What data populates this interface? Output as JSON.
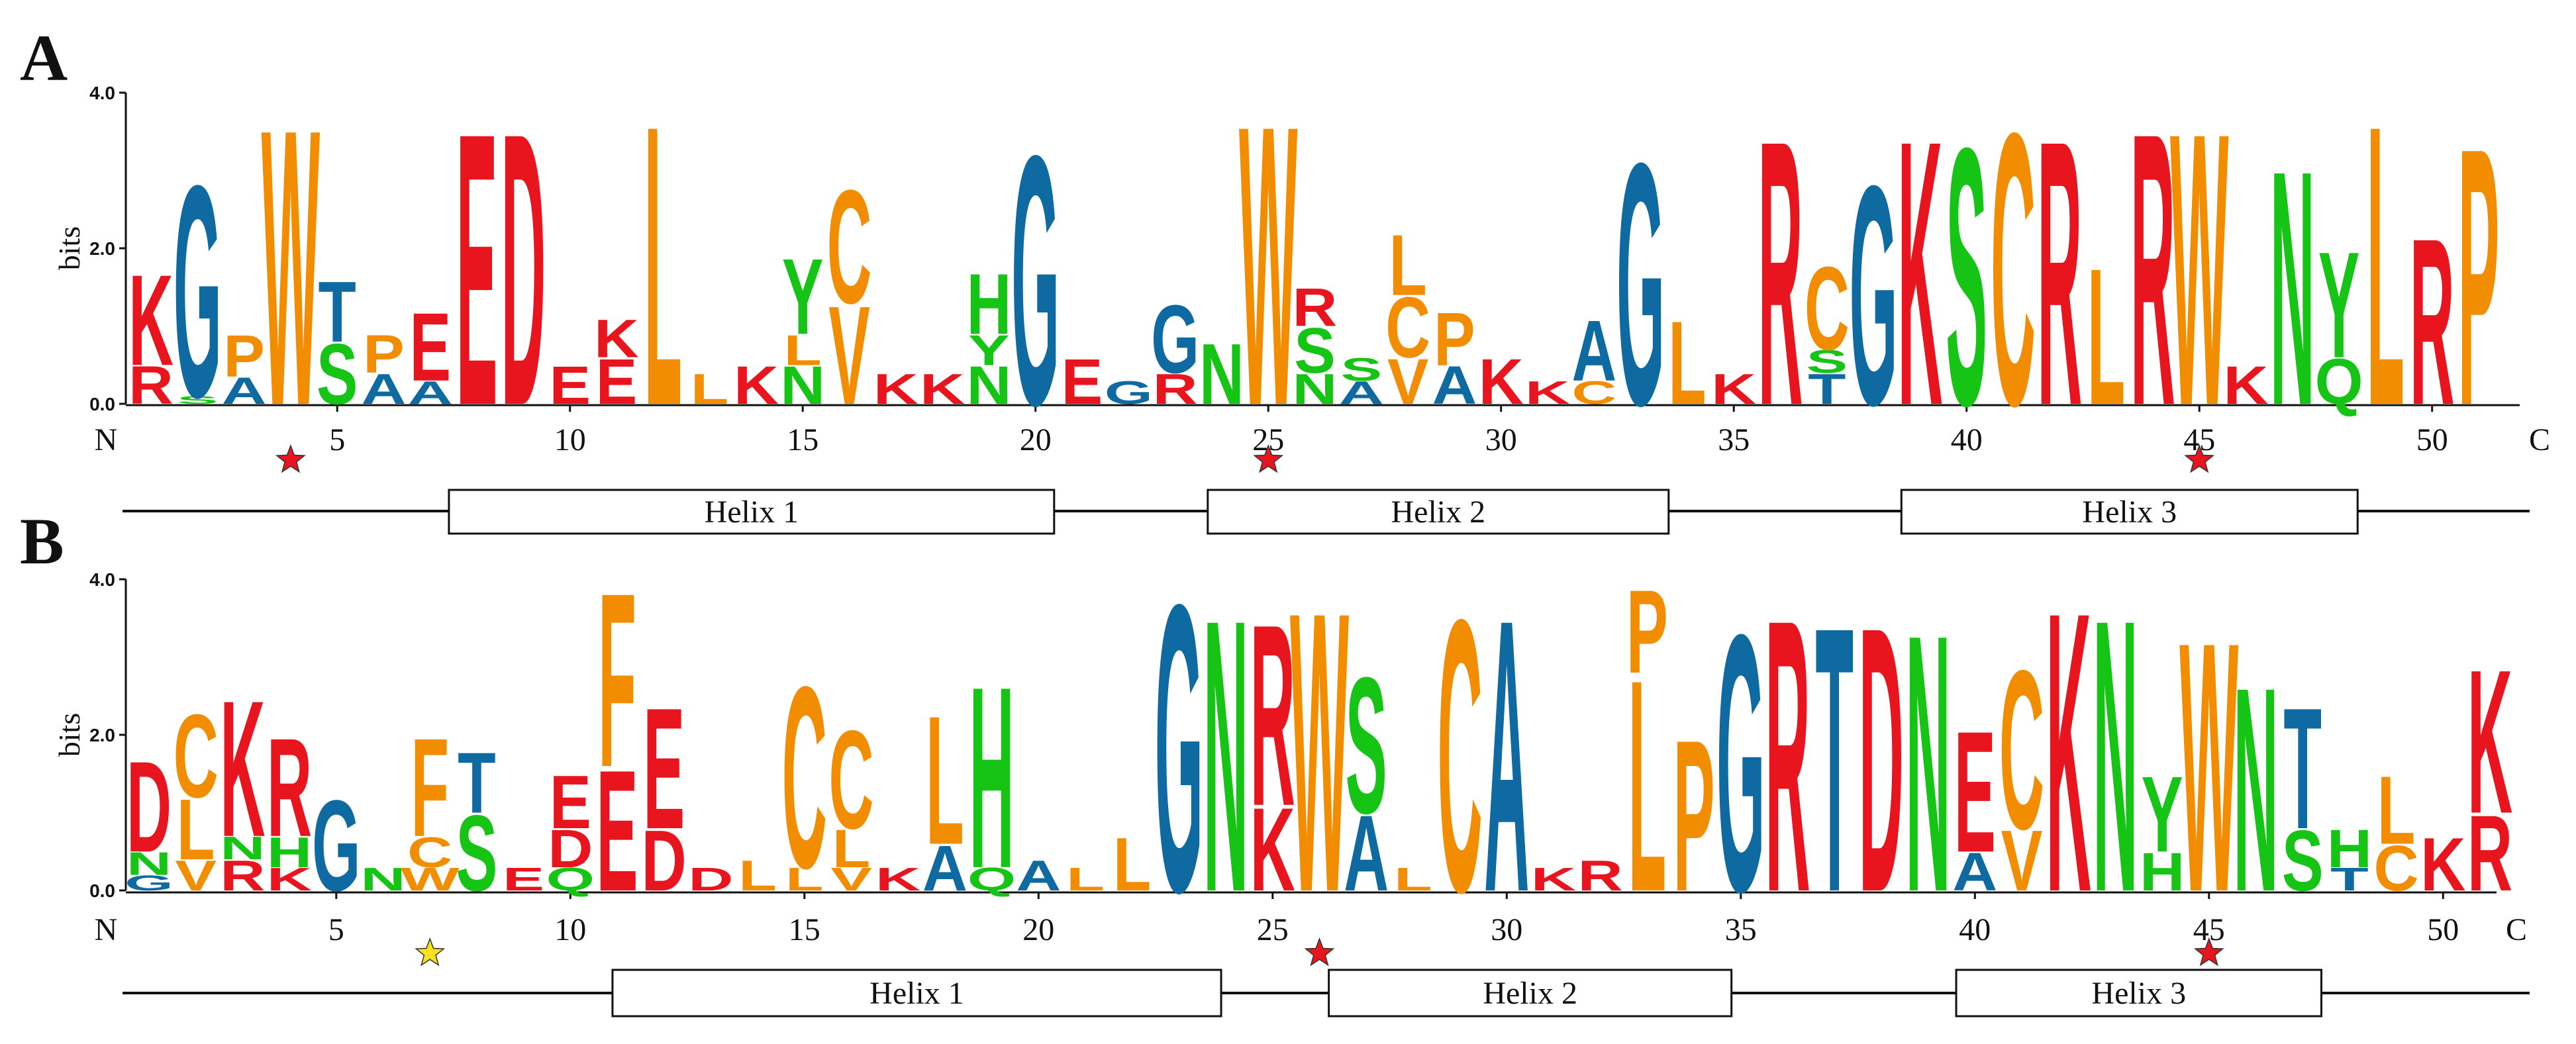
{
  "colors": {
    "G": "#0f6aa1",
    "A": "#0f6aa1",
    "T": "#0f6aa1",
    "C": "#f28c00",
    "hydrophobic": "#f28c00",
    "basic": "#e8151f",
    "acidic": "#e8151f",
    "polar": "#16c416"
  },
  "chart_data": [
    {
      "type": "sequence-logo",
      "panel": "A",
      "ylabel": "bits",
      "ylim": [
        0,
        4.0
      ],
      "yticks": [
        "0.0",
        "2.0",
        "4.0"
      ],
      "n_label": "N",
      "c_label": "C",
      "xticks": [
        "5",
        "10",
        "15",
        "20",
        "25",
        "30",
        "35",
        "40",
        "45",
        "50"
      ],
      "xtick_positions": [
        5,
        10,
        15,
        20,
        25,
        30,
        35,
        40,
        45,
        50
      ],
      "positions": 51,
      "stacks": [
        [
          [
            "R",
            0.5
          ],
          [
            "K",
            1.2
          ]
        ],
        [
          [
            "S",
            0.1
          ],
          [
            "G",
            2.8
          ]
        ],
        [
          [
            "A",
            0.35
          ],
          [
            "P",
            0.55
          ]
        ],
        [
          [
            "W",
            3.65
          ]
        ],
        [
          [
            "S",
            0.8
          ],
          [
            "T",
            0.8
          ]
        ],
        [
          [
            "A",
            0.4
          ],
          [
            "P",
            0.5
          ]
        ],
        [
          [
            "A",
            0.3
          ],
          [
            "E",
            0.9
          ]
        ],
        [
          [
            "E",
            3.6
          ]
        ],
        [
          [
            "D",
            3.6
          ]
        ],
        [
          [
            "E",
            0.5
          ]
        ],
        [
          [
            "E",
            0.6
          ],
          [
            "K",
            0.5
          ]
        ],
        [
          [
            "L",
            3.7
          ]
        ],
        [
          [
            "L",
            0.4
          ]
        ],
        [
          [
            "K",
            0.5
          ]
        ],
        [
          [
            "N",
            0.5
          ],
          [
            "L",
            0.4
          ],
          [
            "Y",
            1.0
          ]
        ],
        [
          [
            "V",
            1.3
          ],
          [
            "C",
            1.5
          ]
        ],
        [
          [
            "K",
            0.4
          ]
        ],
        [
          [
            "K",
            0.4
          ]
        ],
        [
          [
            "N",
            0.5
          ],
          [
            "Y",
            0.4
          ],
          [
            "H",
            0.8
          ]
        ],
        [
          [
            "G",
            3.3
          ]
        ],
        [
          [
            "E",
            0.6
          ]
        ],
        [
          [
            "G",
            0.3
          ]
        ],
        [
          [
            "R",
            0.4
          ],
          [
            "G",
            0.9
          ]
        ],
        [
          [
            "N",
            0.8
          ]
        ],
        [
          [
            "W",
            3.7
          ]
        ],
        [
          [
            "N",
            0.4
          ],
          [
            "S",
            0.6
          ],
          [
            "R",
            0.5
          ]
        ],
        [
          [
            "A",
            0.3
          ],
          [
            "S",
            0.3
          ]
        ],
        [
          [
            "V",
            0.6
          ],
          [
            "C",
            0.8
          ],
          [
            "L",
            0.8
          ]
        ],
        [
          [
            "A",
            0.5
          ],
          [
            "P",
            0.7
          ]
        ],
        [
          [
            "K",
            0.6
          ]
        ],
        [
          [
            "K",
            0.3
          ]
        ],
        [
          [
            "C",
            0.3
          ],
          [
            "A",
            0.8
          ]
        ],
        [
          [
            "G",
            3.2
          ]
        ],
        [
          [
            "L",
            1.1
          ]
        ],
        [
          [
            "K",
            0.4
          ]
        ],
        [
          [
            "R",
            3.5
          ]
        ],
        [
          [
            "T",
            0.4
          ],
          [
            "S",
            0.3
          ],
          [
            "C",
            1.1
          ]
        ],
        [
          [
            "G",
            2.9
          ]
        ],
        [
          [
            "K",
            3.5
          ]
        ],
        [
          [
            "S",
            3.4
          ]
        ],
        [
          [
            "C",
            3.6
          ]
        ],
        [
          [
            "R",
            3.5
          ]
        ],
        [
          [
            "L",
            1.8
          ]
        ],
        [
          [
            "R",
            3.6
          ]
        ],
        [
          [
            "W",
            3.6
          ]
        ],
        [
          [
            "K",
            0.5
          ]
        ],
        [
          [
            "N",
            3.1
          ]
        ],
        [
          [
            "Q",
            0.6
          ],
          [
            "Y",
            1.4
          ]
        ],
        [
          [
            "L",
            3.7
          ]
        ],
        [
          [
            "R",
            2.2
          ]
        ],
        [
          [
            "P",
            3.4
          ]
        ]
      ],
      "stars": [
        {
          "position": 4,
          "color": "#e8151f"
        },
        {
          "position": 25,
          "color": "#e8151f"
        },
        {
          "position": 45,
          "color": "#e8151f"
        }
      ],
      "helices": [
        {
          "label": "Helix 1",
          "start": 7.4,
          "end": 20.4
        },
        {
          "label": "Helix 2",
          "start": 23.7,
          "end": 33.6
        },
        {
          "label": "Helix 3",
          "start": 38.6,
          "end": 48.4
        }
      ]
    },
    {
      "type": "sequence-logo",
      "panel": "B",
      "ylabel": "bits",
      "ylim": [
        0,
        4.0
      ],
      "yticks": [
        "0.0",
        "2.0",
        "4.0"
      ],
      "n_label": "N",
      "c_label": "C",
      "xticks": [
        "5",
        "10",
        "15",
        "20",
        "25",
        "30",
        "35",
        "40",
        "45",
        "50"
      ],
      "xtick_positions": [
        5,
        10,
        15,
        20,
        25,
        30,
        35,
        40,
        45,
        50
      ],
      "positions": 51,
      "stacks": [
        [
          [
            "G",
            0.2
          ],
          [
            "N",
            0.3
          ],
          [
            "D",
            1.2
          ]
        ],
        [
          [
            "V",
            0.4
          ],
          [
            "L",
            0.8
          ],
          [
            "C",
            1.1
          ]
        ],
        [
          [
            "R",
            0.4
          ],
          [
            "N",
            0.3
          ],
          [
            "K",
            1.8
          ]
        ],
        [
          [
            "K",
            0.3
          ],
          [
            "H",
            0.4
          ],
          [
            "R",
            1.3
          ]
        ],
        [
          [
            "G",
            1.2
          ]
        ],
        [
          [
            "N",
            0.3
          ]
        ],
        [
          [
            "W",
            0.3
          ],
          [
            "C",
            0.4
          ],
          [
            "F",
            1.3
          ]
        ],
        [
          [
            "S",
            1.0
          ],
          [
            "T",
            0.8
          ]
        ],
        [
          [
            "E",
            0.3
          ]
        ],
        [
          [
            "Q",
            0.3
          ],
          [
            "D",
            0.5
          ],
          [
            "E",
            0.7
          ]
        ],
        [
          [
            "E",
            1.6
          ],
          [
            "F",
            2.3
          ]
        ],
        [
          [
            "D",
            0.8
          ],
          [
            "E",
            1.6
          ]
        ],
        [
          [
            "D",
            0.3
          ]
        ],
        [
          [
            "L",
            0.4
          ]
        ],
        [
          [
            "L",
            0.3
          ],
          [
            "C",
            2.4
          ]
        ],
        [
          [
            "V",
            0.3
          ],
          [
            "L",
            0.5
          ],
          [
            "C",
            1.3
          ]
        ],
        [
          [
            "K",
            0.3
          ]
        ],
        [
          [
            "A",
            0.6
          ],
          [
            "L",
            1.7
          ]
        ],
        [
          [
            "Q",
            0.3
          ],
          [
            "H",
            2.4
          ]
        ],
        [
          [
            "A",
            0.4
          ]
        ],
        [
          [
            "L",
            0.3
          ]
        ],
        [
          [
            "L",
            0.7
          ]
        ],
        [
          [
            "G",
            3.8
          ]
        ],
        [
          [
            "N",
            3.6
          ]
        ],
        [
          [
            "K",
            1.1
          ],
          [
            "R",
            2.4
          ]
        ],
        [
          [
            "W",
            3.7
          ]
        ],
        [
          [
            "A",
            1.0
          ],
          [
            "S",
            1.8
          ]
        ],
        [
          [
            "L",
            0.3
          ]
        ],
        [
          [
            "C",
            3.6
          ]
        ],
        [
          [
            "A",
            3.6
          ]
        ],
        [
          [
            "K",
            0.3
          ]
        ],
        [
          [
            "R",
            0.4
          ]
        ],
        [
          [
            "L",
            2.8
          ],
          [
            "P",
            1.1
          ]
        ],
        [
          [
            "P",
            2.0
          ]
        ],
        [
          [
            "G",
            3.4
          ]
        ],
        [
          [
            "R",
            3.6
          ]
        ],
        [
          [
            "T",
            3.5
          ]
        ],
        [
          [
            "D",
            3.5
          ]
        ],
        [
          [
            "N",
            3.4
          ]
        ],
        [
          [
            "A",
            0.5
          ],
          [
            "E",
            1.6
          ]
        ],
        [
          [
            "V",
            0.8
          ],
          [
            "C",
            2.1
          ]
        ],
        [
          [
            "K",
            3.7
          ]
        ],
        [
          [
            "N",
            3.6
          ]
        ],
        [
          [
            "H",
            0.5
          ],
          [
            "Y",
            1.0
          ]
        ],
        [
          [
            "W",
            3.3
          ]
        ],
        [
          [
            "N",
            2.7
          ]
        ],
        [
          [
            "S",
            0.8
          ],
          [
            "T",
            1.6
          ]
        ],
        [
          [
            "T",
            0.3
          ],
          [
            "H",
            0.5
          ]
        ],
        [
          [
            "C",
            0.6
          ],
          [
            "L",
            0.9
          ]
        ],
        [
          [
            "K",
            0.7
          ]
        ],
        [
          [
            "R",
            1.0
          ],
          [
            "K",
            1.9
          ]
        ]
      ],
      "stars": [
        {
          "position": 7,
          "color": "#f4e21c"
        },
        {
          "position": 26,
          "color": "#e8151f"
        },
        {
          "position": 45,
          "color": "#e8151f"
        }
      ],
      "helices": [
        {
          "label": "Helix 1",
          "start": 10.9,
          "end": 23.9
        },
        {
          "label": "Helix 2",
          "start": 26.2,
          "end": 34.8
        },
        {
          "label": "Helix 3",
          "start": 39.6,
          "end": 47.4
        }
      ]
    }
  ]
}
